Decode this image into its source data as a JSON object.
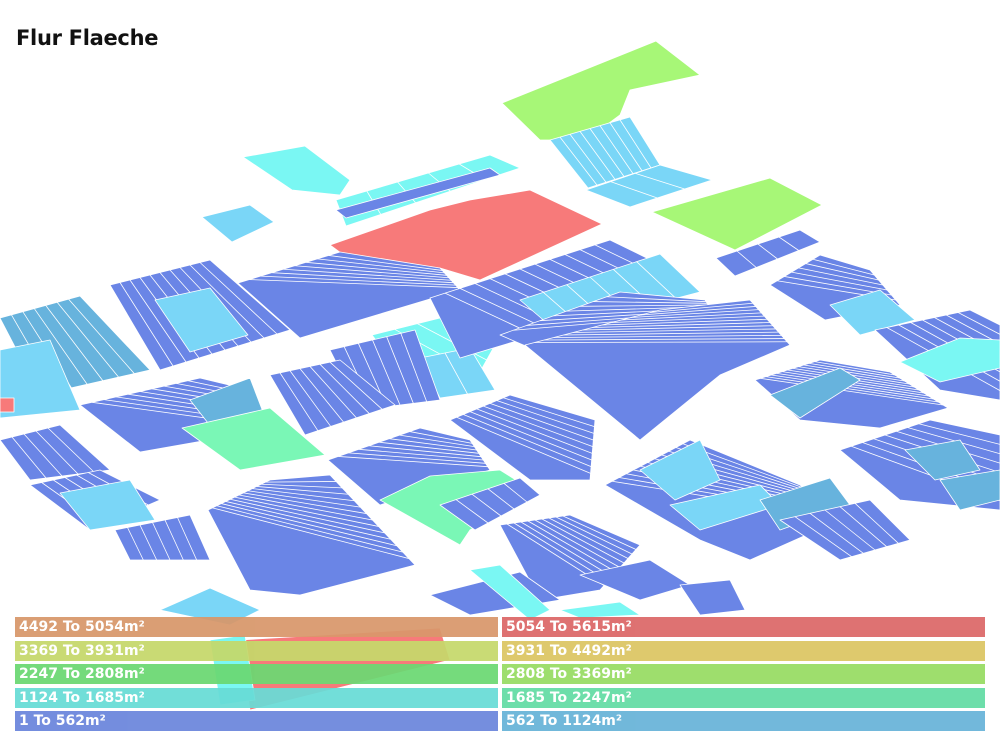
{
  "map": {
    "title": "Flur Flaeche",
    "bin_colors": {
      "b1": "#6a85e6",
      "b2": "#67b3dd",
      "b3": "#7ad6f7",
      "b4": "#7af7f3",
      "b5": "#7af7b6",
      "b6": "#a7f777",
      "b7": "#f77a7a"
    },
    "legend": [
      {
        "label": "4492 To 5054m²",
        "color": "#d8976a"
      },
      {
        "label": "5054 To 5615m²",
        "color": "#dc6767"
      },
      {
        "label": "3369 To 3931m²",
        "color": "#c5d86a"
      },
      {
        "label": "3931 To 4492m²",
        "color": "#dcc562"
      },
      {
        "label": "2247 To 2808m²",
        "color": "#6ad872"
      },
      {
        "label": "2808 To 3369m²",
        "color": "#97dc62"
      },
      {
        "label": "1124 To 1685m²",
        "color": "#67dcd6"
      },
      {
        "label": "1685 To 2247m²",
        "color": "#62dca4"
      },
      {
        "label": "1 To 562m²",
        "color": "#6a85dc"
      },
      {
        "label": "562 To 1124m²",
        "color": "#67b3d8"
      }
    ]
  }
}
